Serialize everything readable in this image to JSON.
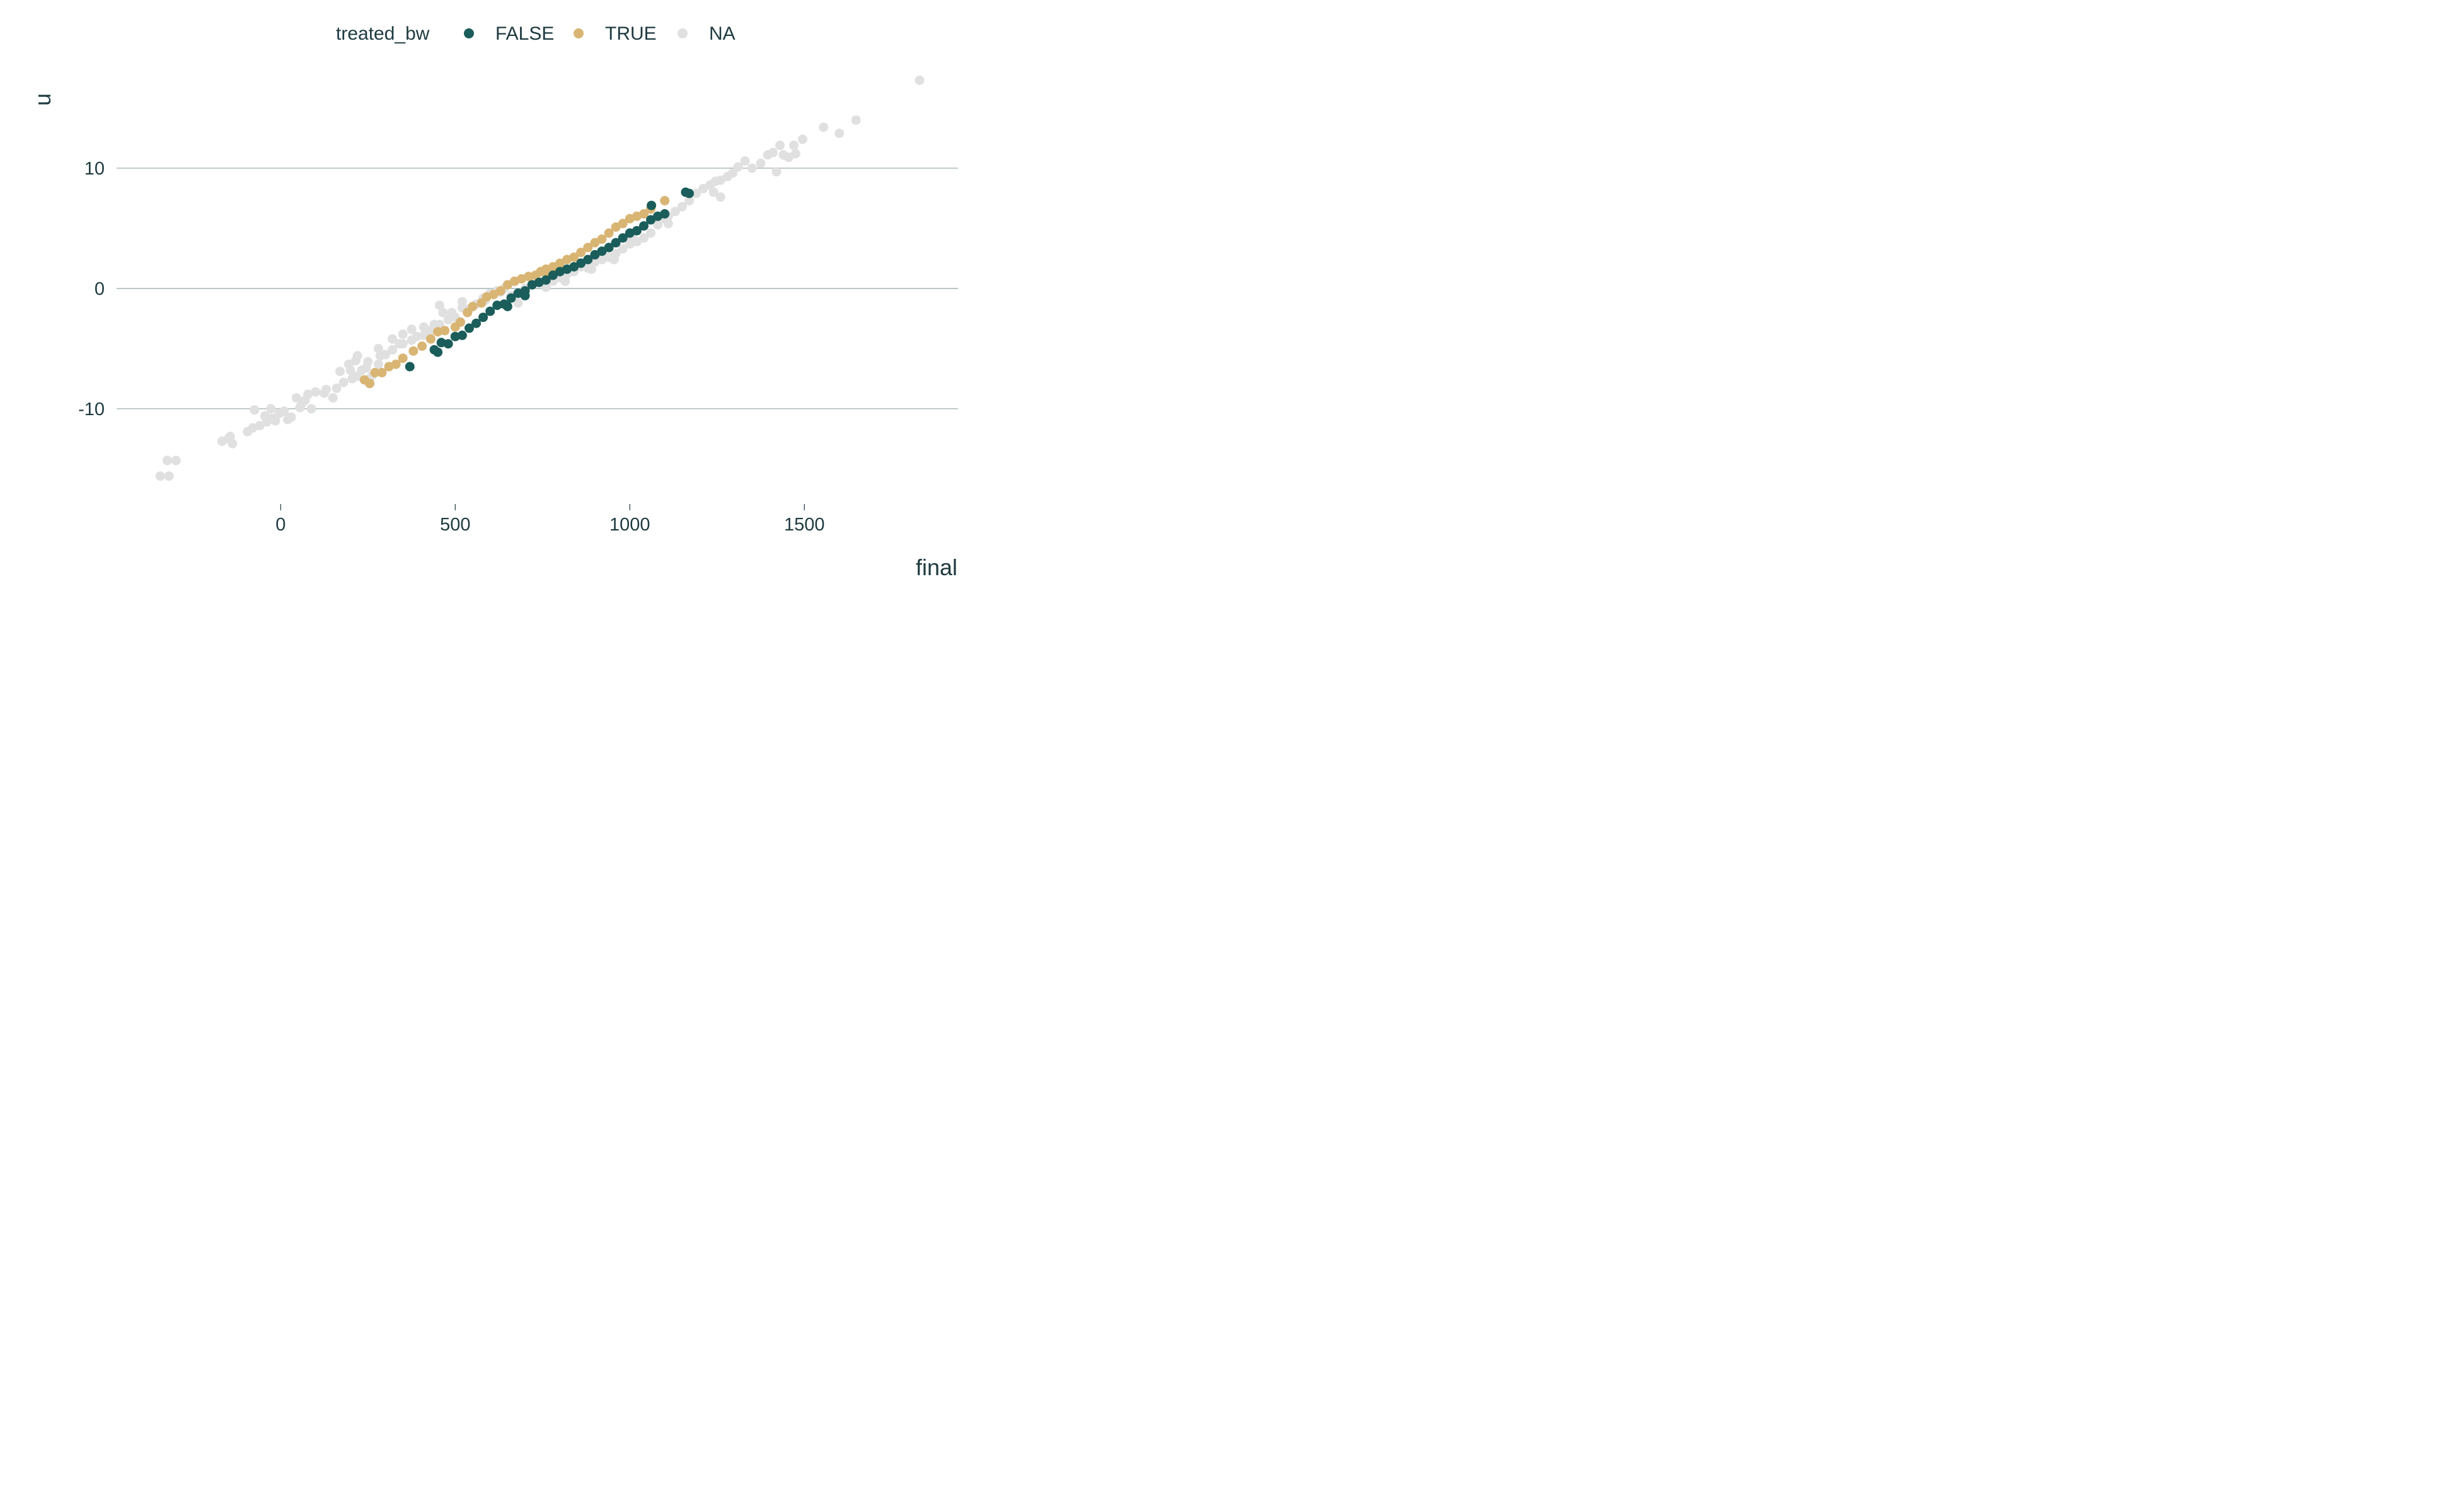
{
  "chart_data": {
    "type": "scatter",
    "title": "",
    "xlabel": "final",
    "ylabel": "u",
    "xlim": [
      -470,
      1940
    ],
    "ylim": [
      -17.5,
      17.8
    ],
    "x_ticks": [
      0,
      500,
      1000,
      1500
    ],
    "x_tick_labels": [
      "0",
      "500",
      "1000",
      "1500"
    ],
    "y_ticks": [
      -10,
      0,
      10
    ],
    "y_tick_labels": [
      "-10",
      "0",
      "10"
    ],
    "grid": "horizontal major only",
    "legend": {
      "title": "treated_bw",
      "position": "top",
      "entries": [
        {
          "label": "FALSE",
          "color": "#1b5d5a"
        },
        {
          "label": "TRUE",
          "color": "#d9b574"
        },
        {
          "label": "NA",
          "color": "#e0e0e0"
        }
      ]
    },
    "series": [
      {
        "name": "NA",
        "color": "#e0e0e0",
        "points": [
          [
            -345,
            -15.6
          ],
          [
            -320,
            -15.6
          ],
          [
            -325,
            -14.3
          ],
          [
            -300,
            -14.3
          ],
          [
            -168,
            -12.7
          ],
          [
            -150,
            -12.5
          ],
          [
            -138,
            -12.9
          ],
          [
            -145,
            -12.3
          ],
          [
            -95,
            -11.9
          ],
          [
            -80,
            -11.6
          ],
          [
            -60,
            -11.4
          ],
          [
            -75,
            -10.1
          ],
          [
            -40,
            -11.1
          ],
          [
            -25,
            -10.8
          ],
          [
            -45,
            -10.6
          ],
          [
            -15,
            -11.0
          ],
          [
            -5,
            -10.4
          ],
          [
            10,
            -10.2
          ],
          [
            20,
            -10.9
          ],
          [
            -28,
            -10.0
          ],
          [
            30,
            -10.7
          ],
          [
            55,
            -9.9
          ],
          [
            45,
            -9.1
          ],
          [
            70,
            -9.3
          ],
          [
            88,
            -10.0
          ],
          [
            60,
            -9.6
          ],
          [
            78,
            -8.8
          ],
          [
            100,
            -8.6
          ],
          [
            125,
            -8.7
          ],
          [
            150,
            -9.1
          ],
          [
            130,
            -8.4
          ],
          [
            160,
            -8.3
          ],
          [
            180,
            -7.8
          ],
          [
            170,
            -6.9
          ],
          [
            205,
            -7.5
          ],
          [
            200,
            -6.8
          ],
          [
            215,
            -6.0
          ],
          [
            220,
            -5.6
          ],
          [
            245,
            -6.6
          ],
          [
            260,
            -7.3
          ],
          [
            280,
            -6.3
          ],
          [
            285,
            -5.6
          ],
          [
            300,
            -5.5
          ],
          [
            320,
            -5.1
          ],
          [
            340,
            -4.6
          ],
          [
            350,
            -3.8
          ],
          [
            375,
            -4.3
          ],
          [
            390,
            -4.0
          ],
          [
            410,
            -3.9
          ],
          [
            430,
            -3.5
          ],
          [
            455,
            -3.0
          ],
          [
            465,
            -2.0
          ],
          [
            480,
            -2.6
          ],
          [
            500,
            -2.4
          ],
          [
            520,
            -1.6
          ],
          [
            540,
            -1.7
          ],
          [
            560,
            -1.3
          ],
          [
            580,
            -0.8
          ],
          [
            600,
            -0.4
          ],
          [
            620,
            -0.2
          ],
          [
            640,
            0.0
          ],
          [
            660,
            -0.6
          ],
          [
            680,
            -1.2
          ],
          [
            700,
            0.0
          ],
          [
            720,
            0.4
          ],
          [
            740,
            0.6
          ],
          [
            760,
            0.8
          ],
          [
            780,
            0.6
          ],
          [
            800,
            0.9
          ],
          [
            820,
            1.2
          ],
          [
            840,
            1.4
          ],
          [
            860,
            1.8
          ],
          [
            880,
            1.7
          ],
          [
            900,
            2.2
          ],
          [
            920,
            2.4
          ],
          [
            940,
            2.6
          ],
          [
            960,
            2.9
          ],
          [
            980,
            3.3
          ],
          [
            1000,
            3.7
          ],
          [
            1020,
            3.9
          ],
          [
            1040,
            4.2
          ],
          [
            1060,
            4.6
          ],
          [
            1080,
            5.3
          ],
          [
            1095,
            5.8
          ],
          [
            1110,
            6.0
          ],
          [
            1130,
            6.4
          ],
          [
            1150,
            6.8
          ],
          [
            1170,
            7.3
          ],
          [
            1190,
            7.9
          ],
          [
            1210,
            8.3
          ],
          [
            1230,
            8.6
          ],
          [
            1245,
            8.9
          ],
          [
            1260,
            9.0
          ],
          [
            1280,
            9.3
          ],
          [
            1295,
            9.6
          ],
          [
            1310,
            10.1
          ],
          [
            1330,
            10.6
          ],
          [
            1350,
            10.0
          ],
          [
            1375,
            10.4
          ],
          [
            1395,
            11.1
          ],
          [
            1410,
            11.3
          ],
          [
            1420,
            9.7
          ],
          [
            1430,
            11.9
          ],
          [
            1440,
            11.1
          ],
          [
            1455,
            10.9
          ],
          [
            1470,
            11.9
          ],
          [
            1475,
            11.2
          ],
          [
            1495,
            12.4
          ],
          [
            1555,
            13.4
          ],
          [
            1600,
            12.9
          ],
          [
            1648,
            14.0
          ],
          [
            1830,
            17.3
          ],
          [
            1240,
            8.0
          ],
          [
            1260,
            7.6
          ],
          [
            1110,
            5.4
          ],
          [
            1005,
            4.3
          ],
          [
            955,
            2.4
          ],
          [
            890,
            1.6
          ],
          [
            815,
            0.6
          ],
          [
            760,
            0.1
          ],
          [
            690,
            -0.4
          ],
          [
            630,
            -0.3
          ],
          [
            585,
            -1.0
          ],
          [
            520,
            -1.1
          ],
          [
            490,
            -2.0
          ],
          [
            455,
            -1.4
          ],
          [
            440,
            -3.0
          ],
          [
            410,
            -3.2
          ],
          [
            375,
            -3.4
          ],
          [
            350,
            -4.6
          ],
          [
            320,
            -4.2
          ],
          [
            300,
            -5.5
          ],
          [
            280,
            -5.0
          ],
          [
            250,
            -6.1
          ],
          [
            232,
            -6.8
          ],
          [
            220,
            -7.3
          ],
          [
            195,
            -6.3
          ]
        ]
      },
      {
        "name": "TRUE",
        "color": "#d9b574",
        "points": [
          [
            240,
            -7.6
          ],
          [
            255,
            -7.9
          ],
          [
            270,
            -7.0
          ],
          [
            290,
            -7.0
          ],
          [
            310,
            -6.5
          ],
          [
            330,
            -6.3
          ],
          [
            350,
            -5.8
          ],
          [
            380,
            -5.2
          ],
          [
            405,
            -4.8
          ],
          [
            430,
            -4.2
          ],
          [
            450,
            -3.6
          ],
          [
            470,
            -3.5
          ],
          [
            500,
            -3.2
          ],
          [
            515,
            -2.8
          ],
          [
            535,
            -2.0
          ],
          [
            550,
            -1.5
          ],
          [
            575,
            -1.2
          ],
          [
            590,
            -0.7
          ],
          [
            610,
            -0.5
          ],
          [
            630,
            -0.2
          ],
          [
            650,
            0.3
          ],
          [
            670,
            0.6
          ],
          [
            690,
            0.8
          ],
          [
            710,
            1.0
          ],
          [
            730,
            1.1
          ],
          [
            745,
            1.4
          ],
          [
            760,
            1.6
          ],
          [
            780,
            1.8
          ],
          [
            800,
            2.1
          ],
          [
            820,
            2.4
          ],
          [
            840,
            2.6
          ],
          [
            860,
            3.0
          ],
          [
            880,
            3.4
          ],
          [
            900,
            3.8
          ],
          [
            920,
            4.1
          ],
          [
            940,
            4.6
          ],
          [
            960,
            5.1
          ],
          [
            980,
            5.4
          ],
          [
            1000,
            5.8
          ],
          [
            1020,
            6.0
          ],
          [
            1040,
            6.2
          ],
          [
            1060,
            6.6
          ],
          [
            1100,
            7.3
          ],
          [
            720,
            0.3
          ],
          [
            760,
            1.3
          ]
        ]
      },
      {
        "name": "FALSE",
        "color": "#1b5d5a",
        "points": [
          [
            370,
            -6.5
          ],
          [
            440,
            -5.1
          ],
          [
            450,
            -5.3
          ],
          [
            460,
            -4.5
          ],
          [
            480,
            -4.6
          ],
          [
            500,
            -4.0
          ],
          [
            520,
            -3.9
          ],
          [
            540,
            -3.3
          ],
          [
            560,
            -2.9
          ],
          [
            580,
            -2.4
          ],
          [
            600,
            -1.9
          ],
          [
            620,
            -1.4
          ],
          [
            640,
            -1.3
          ],
          [
            660,
            -0.8
          ],
          [
            680,
            -0.4
          ],
          [
            700,
            -0.2
          ],
          [
            720,
            0.3
          ],
          [
            740,
            0.5
          ],
          [
            760,
            0.7
          ],
          [
            780,
            1.1
          ],
          [
            800,
            1.4
          ],
          [
            820,
            1.6
          ],
          [
            840,
            1.8
          ],
          [
            860,
            2.1
          ],
          [
            880,
            2.4
          ],
          [
            900,
            2.8
          ],
          [
            920,
            3.1
          ],
          [
            940,
            3.4
          ],
          [
            960,
            3.8
          ],
          [
            980,
            4.2
          ],
          [
            1000,
            4.6
          ],
          [
            1020,
            4.8
          ],
          [
            1040,
            5.2
          ],
          [
            1060,
            5.7
          ],
          [
            1062,
            6.9
          ],
          [
            1080,
            6.0
          ],
          [
            1100,
            6.2
          ],
          [
            1160,
            8.0
          ],
          [
            1170,
            7.9
          ],
          [
            700,
            -0.6
          ],
          [
            650,
            -1.5
          ]
        ]
      }
    ]
  }
}
